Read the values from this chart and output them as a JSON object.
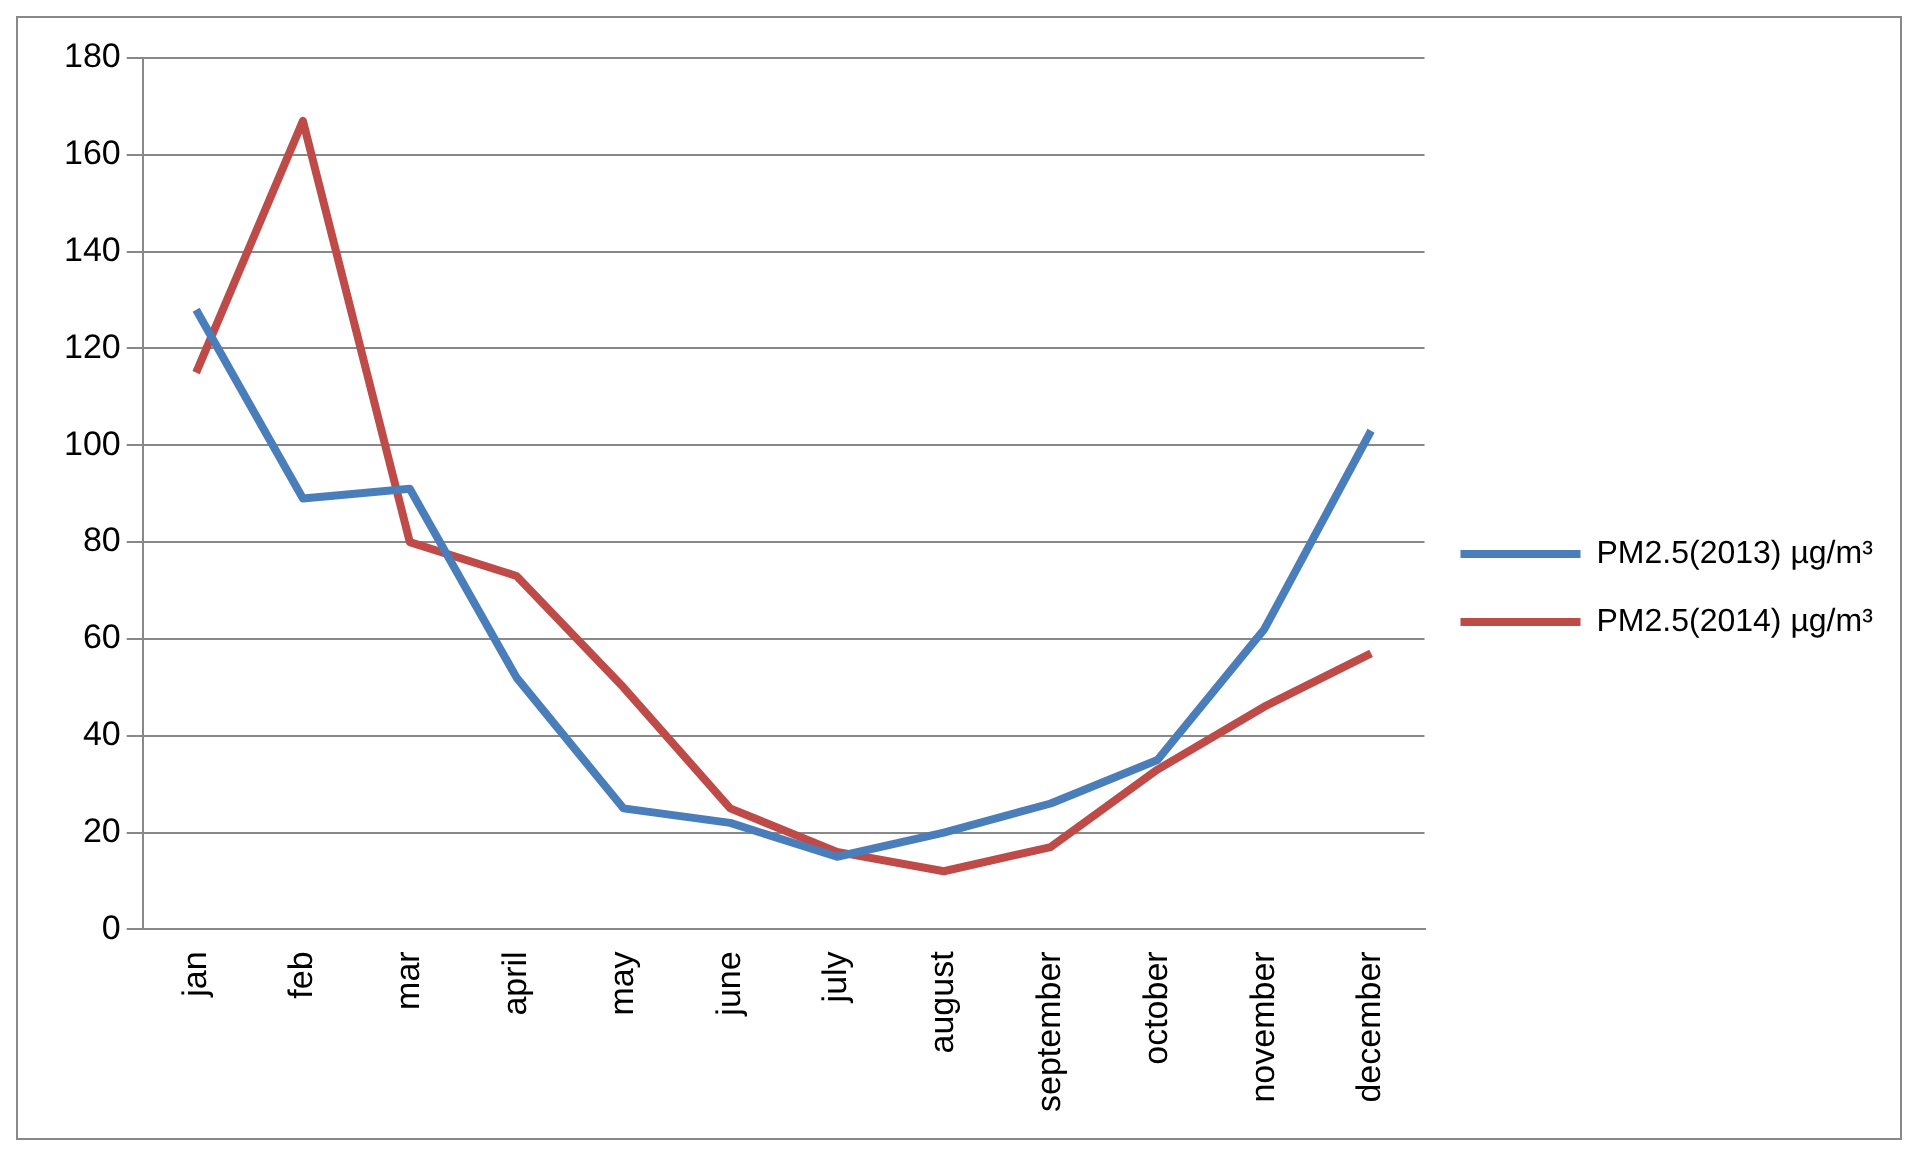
{
  "chart_data": {
    "type": "line",
    "categories": [
      "jan",
      "feb",
      "mar",
      "april",
      "may",
      "june",
      "july",
      "august",
      "september",
      "october",
      "november",
      "december"
    ],
    "series": [
      {
        "name": "PM2.5(2013) µg/m³",
        "color": "#4a7ebb",
        "values": [
          128,
          89,
          91,
          52,
          25,
          22,
          15,
          20,
          26,
          35,
          62,
          103
        ]
      },
      {
        "name": "PM2.5(2014) µg/m³",
        "color": "#be4b48",
        "values": [
          115,
          167,
          80,
          73,
          50,
          25,
          16,
          12,
          17,
          33,
          46,
          57
        ]
      }
    ],
    "ylim": [
      0,
      180
    ],
    "yticks": [
      0,
      20,
      40,
      60,
      80,
      100,
      120,
      140,
      160,
      180
    ],
    "grid": "y",
    "legend": "right",
    "marker": "none",
    "line_style": "solid"
  }
}
